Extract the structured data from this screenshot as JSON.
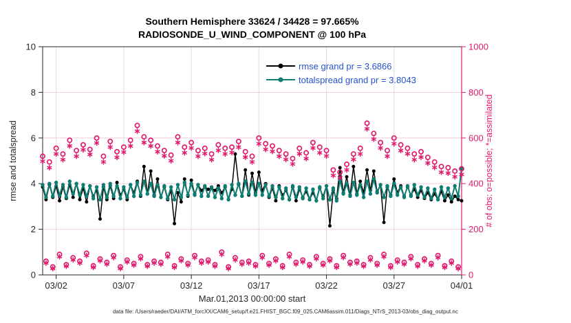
{
  "title": {
    "line1": "Southern Hemisphere 33624 / 34428 = 97.665%",
    "line2": "RADIOSONDE_U_WIND_COMPONENT @ 100 hPa"
  },
  "footer": {
    "data_file": "data file: /Users/raeder/DAI/ATM_forcXX/CAM6_setup/f.e21.FHIST_BGC.f09_025.CAM6assim.011/Diags_NTrS_2013-03/obs_diag_output.nc"
  },
  "chart_data": {
    "type": "line",
    "title": "Southern Hemisphere 33624 / 34428 = 97.665% — RADIOSONDE_U_WIND_COMPONENT @ 100 hPa",
    "xlabel": "Mar.01,2013 00:00:00 start",
    "ylabel_left": "rmse and totalspread",
    "ylabel_right": "# of obs: o=possible; *=assimilated",
    "x_range_days": [
      0,
      31
    ],
    "x_tick_days": [
      1,
      6,
      11,
      16,
      21,
      26,
      31
    ],
    "x_ticks": [
      "03/02",
      "03/07",
      "03/12",
      "03/17",
      "03/22",
      "03/27",
      "04/01"
    ],
    "ylim_left": [
      0,
      10
    ],
    "yticks_left": [
      0,
      2,
      4,
      6,
      8,
      10
    ],
    "ylim_right": [
      0,
      1000
    ],
    "yticks_right": [
      0,
      200,
      400,
      600,
      800,
      1000
    ],
    "grid": true,
    "legend_position": "top-center-inside",
    "time_step_days": 0.25,
    "colors": {
      "obs_pink": "#e01a6e",
      "teal": "#0e7d72",
      "black": "#000000",
      "legend_text_blue": "#2553cd",
      "grid_h": "#f5cedb",
      "grid_v": "#dcdcdc",
      "axis_dark": "#262626"
    },
    "series": [
      {
        "name": "rmse",
        "label": "rmse grand pr = 3.6866",
        "grand_mean": 3.6866,
        "color": "#000000",
        "axis": "left",
        "marker": "filled-circle",
        "values": [
          3.85,
          3.3,
          3.95,
          3.4,
          3.9,
          3.25,
          3.85,
          3.35,
          3.95,
          3.4,
          4.0,
          3.3,
          3.8,
          3.2,
          3.9,
          3.45,
          3.7,
          2.45,
          3.85,
          3.3,
          3.9,
          3.35,
          4.05,
          3.5,
          3.75,
          3.3,
          3.95,
          3.6,
          4.1,
          3.45,
          4.75,
          3.55,
          4.55,
          3.5,
          4.2,
          3.4,
          3.85,
          3.3,
          3.7,
          2.25,
          3.6,
          3.2,
          4.2,
          3.45,
          4.15,
          3.55,
          3.95,
          3.7,
          3.85,
          3.75,
          3.8,
          3.7,
          3.9,
          3.6,
          3.85,
          3.3,
          3.75,
          5.3,
          3.95,
          3.45,
          4.6,
          3.5,
          4.45,
          3.6,
          4.5,
          3.7,
          4.0,
          3.4,
          3.8,
          3.25,
          3.9,
          3.5,
          3.7,
          3.3,
          3.85,
          3.25,
          3.75,
          3.4,
          3.65,
          3.3,
          3.6,
          3.25,
          3.8,
          3.45,
          3.9,
          2.15,
          3.7,
          3.35,
          4.7,
          3.6,
          4.3,
          3.5,
          4.75,
          3.55,
          4.1,
          3.6,
          4.6,
          3.7,
          4.55,
          3.65,
          3.95,
          2.3,
          3.85,
          3.5,
          4.2,
          3.6,
          3.9,
          3.45,
          3.85,
          3.5,
          3.75,
          3.4,
          3.7,
          3.35,
          3.6,
          3.3,
          3.55,
          3.3,
          3.65,
          3.25,
          3.5,
          3.2,
          3.45,
          3.3,
          3.25
        ]
      },
      {
        "name": "totalspread",
        "label": "totalspread grand pr = 3.8043",
        "grand_mean": 3.8043,
        "color": "#0e7d72",
        "axis": "left",
        "marker": "filled-circle",
        "values": [
          3.95,
          3.4,
          4.0,
          3.45,
          4.05,
          3.5,
          3.95,
          3.4,
          4.1,
          3.55,
          4.0,
          3.5,
          3.95,
          3.45,
          3.9,
          3.35,
          3.85,
          3.3,
          3.95,
          3.4,
          4.0,
          3.45,
          3.9,
          3.35,
          3.85,
          3.4,
          3.95,
          3.45,
          4.05,
          3.5,
          4.1,
          3.55,
          4.0,
          3.45,
          3.95,
          3.4,
          3.9,
          3.35,
          3.85,
          3.3,
          3.95,
          3.4,
          4.05,
          3.5,
          4.0,
          3.5,
          3.95,
          3.45,
          3.9,
          3.45,
          3.85,
          3.4,
          3.8,
          3.35,
          3.9,
          3.3,
          3.95,
          3.5,
          4.0,
          3.45,
          4.1,
          3.55,
          4.05,
          3.5,
          4.0,
          3.5,
          3.95,
          3.45,
          3.9,
          3.4,
          3.85,
          3.35,
          3.8,
          3.3,
          3.9,
          3.4,
          3.85,
          3.35,
          3.8,
          3.3,
          3.75,
          3.25,
          3.85,
          3.35,
          3.9,
          3.3,
          3.8,
          3.25,
          4.15,
          3.55,
          4.0,
          3.45,
          4.05,
          3.5,
          3.95,
          3.4,
          4.1,
          3.55,
          4.2,
          3.6,
          3.95,
          3.4,
          3.9,
          3.45,
          4.0,
          3.5,
          3.85,
          3.4,
          3.9,
          3.45,
          3.95,
          3.5,
          3.85,
          3.4,
          3.8,
          3.35,
          3.75,
          3.3,
          3.85,
          3.4,
          3.8,
          3.35,
          3.9,
          3.45,
          4.67
        ]
      },
      {
        "name": "possible",
        "label": "o=possible",
        "color": "#e01a6e",
        "axis": "right",
        "marker": "open-circle",
        "values": [
          520,
          60,
          495,
          35,
          555,
          90,
          530,
          45,
          590,
          75,
          545,
          60,
          570,
          95,
          550,
          40,
          600,
          70,
          520,
          55,
          585,
          85,
          540,
          35,
          560,
          65,
          590,
          50,
          655,
          80,
          605,
          45,
          590,
          60,
          565,
          55,
          545,
          90,
          525,
          40,
          605,
          70,
          560,
          50,
          580,
          85,
          545,
          60,
          555,
          65,
          530,
          45,
          570,
          100,
          555,
          35,
          560,
          75,
          585,
          55,
          540,
          60,
          520,
          45,
          600,
          85,
          575,
          50,
          565,
          70,
          545,
          40,
          530,
          90,
          510,
          55,
          555,
          65,
          535,
          45,
          580,
          80,
          560,
          50,
          545,
          70,
          460,
          40,
          450,
          85,
          485,
          55,
          530,
          60,
          555,
          45,
          665,
          75,
          620,
          50,
          580,
          90,
          545,
          40,
          600,
          65,
          570,
          55,
          555,
          80,
          530,
          45,
          540,
          70,
          515,
          50,
          495,
          85,
          475,
          40,
          470,
          60,
          455,
          35,
          465
        ]
      },
      {
        "name": "assimilated",
        "label": "*=assimilated",
        "color": "#e01a6e",
        "axis": "right",
        "marker": "asterisk",
        "values": [
          498,
          52,
          470,
          28,
          530,
          80,
          505,
          38,
          565,
          66,
          520,
          52,
          548,
          85,
          528,
          33,
          578,
          62,
          495,
          47,
          560,
          76,
          515,
          28,
          538,
          57,
          565,
          43,
          630,
          71,
          580,
          38,
          565,
          52,
          540,
          47,
          522,
          80,
          500,
          33,
          580,
          62,
          535,
          43,
          556,
          76,
          520,
          52,
          532,
          57,
          505,
          38,
          546,
          90,
          530,
          28,
          536,
          66,
          560,
          47,
          516,
          52,
          495,
          38,
          575,
          76,
          550,
          43,
          541,
          62,
          520,
          33,
          506,
          80,
          486,
          47,
          531,
          57,
          510,
          38,
          556,
          71,
          535,
          43,
          521,
          62,
          436,
          33,
          426,
          76,
          460,
          47,
          506,
          52,
          530,
          38,
          640,
          66,
          595,
          43,
          556,
          80,
          520,
          33,
          575,
          57,
          545,
          47,
          531,
          71,
          505,
          38,
          516,
          62,
          490,
          43,
          471,
          76,
          450,
          33,
          446,
          52,
          430,
          28,
          440
        ]
      }
    ]
  }
}
